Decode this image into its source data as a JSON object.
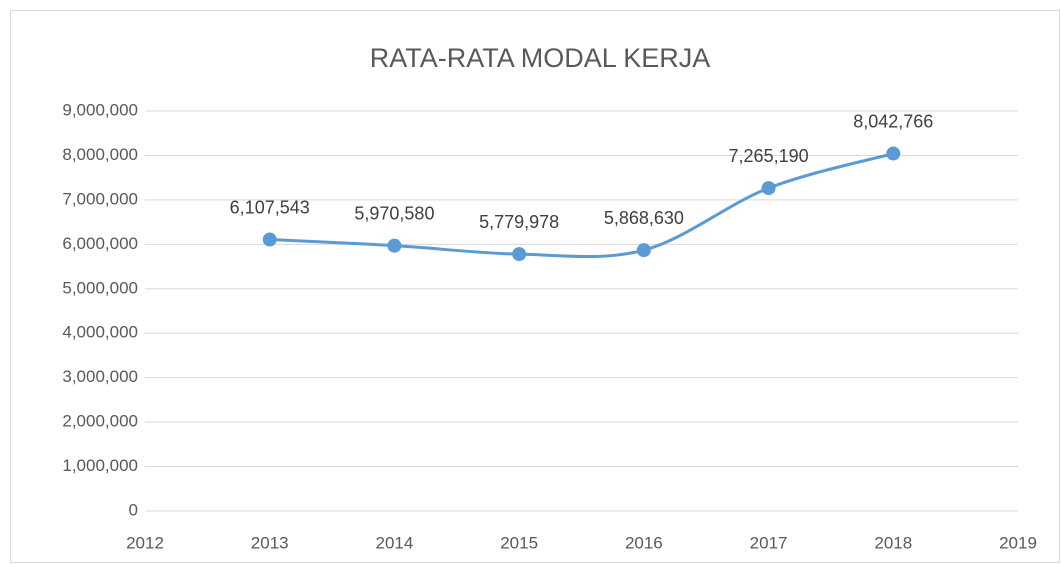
{
  "chart_data": {
    "type": "line",
    "title": "RATA-RATA MODAL KERJA",
    "x": [
      2013,
      2014,
      2015,
      2016,
      2017,
      2018
    ],
    "series": [
      {
        "color": "#5b9bd5",
        "values": [
          6107543,
          5970580,
          5779978,
          5868630,
          7265190,
          8042766
        ],
        "value_labels": [
          "6,107,543",
          "5,970,580",
          "5,779,978",
          "5,868,630",
          "7,265,190",
          "8,042,766"
        ]
      }
    ],
    "xlim": [
      2012,
      2019
    ],
    "xticks": [
      2012,
      2013,
      2014,
      2015,
      2016,
      2017,
      2018,
      2019
    ],
    "ylim": [
      0,
      9000000
    ],
    "yticks": [
      0,
      {
        "value": 1000000,
        "label": "1,000,000"
      },
      {
        "value": 2000000,
        "label": "2,000,000"
      },
      {
        "value": 3000000,
        "label": "3,000,000"
      },
      {
        "value": 4000000,
        "label": "4,000,000"
      },
      {
        "value": 5000000,
        "label": "5,000,000"
      },
      {
        "value": 6000000,
        "label": "6,000,000"
      },
      {
        "value": 7000000,
        "label": "7,000,000"
      },
      {
        "value": 8000000,
        "label": "8,000,000"
      },
      {
        "value": 9000000,
        "label": "9,000,000"
      }
    ],
    "grid": true,
    "smooth": true
  }
}
